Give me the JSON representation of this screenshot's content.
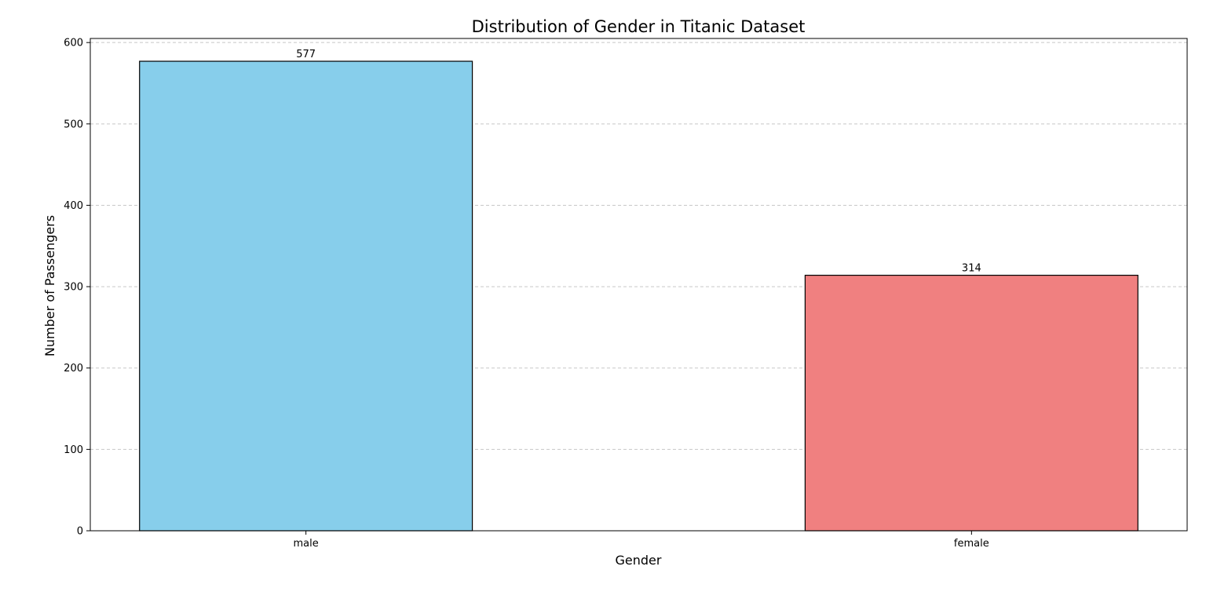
{
  "chart_data": {
    "type": "bar",
    "title": "Distribution of Gender in Titanic Dataset",
    "xlabel": "Gender",
    "ylabel": "Number of Passengers",
    "categories": [
      "male",
      "female"
    ],
    "values": [
      577,
      314
    ],
    "value_labels": [
      "577",
      "314"
    ],
    "bar_colors": [
      "#87ceeb",
      "#f08080"
    ],
    "bar_edge_color": "#000000",
    "ylim": [
      0,
      605
    ],
    "yticks": [
      0,
      100,
      200,
      300,
      400,
      500,
      600
    ],
    "ytick_labels": [
      "0",
      "100",
      "200",
      "300",
      "400",
      "500",
      "600"
    ],
    "grid": {
      "axis": "y",
      "style": "dashed",
      "color": "#c8c8c8"
    },
    "legend": "none"
  }
}
